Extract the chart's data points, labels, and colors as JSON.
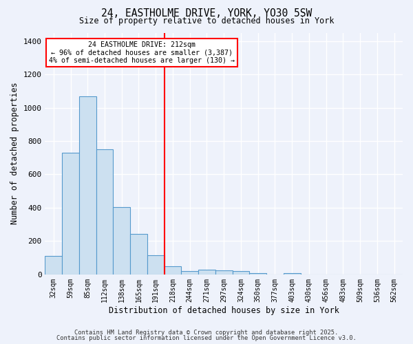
{
  "title1": "24, EASTHOLME DRIVE, YORK, YO30 5SW",
  "title2": "Size of property relative to detached houses in York",
  "xlabel": "Distribution of detached houses by size in York",
  "ylabel": "Number of detached properties",
  "bar_labels": [
    "32sqm",
    "59sqm",
    "85sqm",
    "112sqm",
    "138sqm",
    "165sqm",
    "191sqm",
    "218sqm",
    "244sqm",
    "271sqm",
    "297sqm",
    "324sqm",
    "350sqm",
    "377sqm",
    "403sqm",
    "430sqm",
    "456sqm",
    "483sqm",
    "509sqm",
    "536sqm",
    "562sqm"
  ],
  "bar_values": [
    110,
    730,
    1070,
    750,
    405,
    243,
    115,
    50,
    22,
    30,
    25,
    20,
    8,
    0,
    8,
    0,
    0,
    0,
    0,
    0,
    0
  ],
  "bar_color": "#cce0f0",
  "bar_edge_color": "#5599cc",
  "vline_color": "red",
  "vline_x_index": 7,
  "annotation_line1": "24 EASTHOLME DRIVE: 212sqm",
  "annotation_line2": "← 96% of detached houses are smaller (3,387)",
  "annotation_line3": "4% of semi-detached houses are larger (130) →",
  "annotation_box_color": "white",
  "annotation_box_edge": "red",
  "ylim": [
    0,
    1450
  ],
  "yticks": [
    0,
    200,
    400,
    600,
    800,
    1000,
    1200,
    1400
  ],
  "bg_color": "#eef2fb",
  "grid_color": "white",
  "footer1": "Contains HM Land Registry data © Crown copyright and database right 2025.",
  "footer2": "Contains public sector information licensed under the Open Government Licence v3.0."
}
